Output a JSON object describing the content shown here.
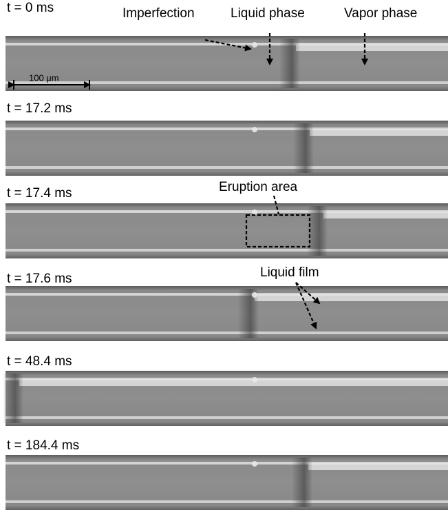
{
  "frames": [
    {
      "label": "t = 0 ms"
    },
    {
      "label": "t = 17.2 ms"
    },
    {
      "label": "t = 17.4 ms"
    },
    {
      "label": "t = 17.6 ms"
    },
    {
      "label": "t = 48.4 ms"
    },
    {
      "label": "t = 184.4 ms"
    }
  ],
  "annotations": {
    "imperfection": "Imperfection",
    "liquid_phase": "Liquid phase",
    "vapor_phase": "Vapor phase",
    "scale_bar": "100 μm",
    "eruption_area": "Eruption area",
    "liquid_film": "Liquid film"
  }
}
